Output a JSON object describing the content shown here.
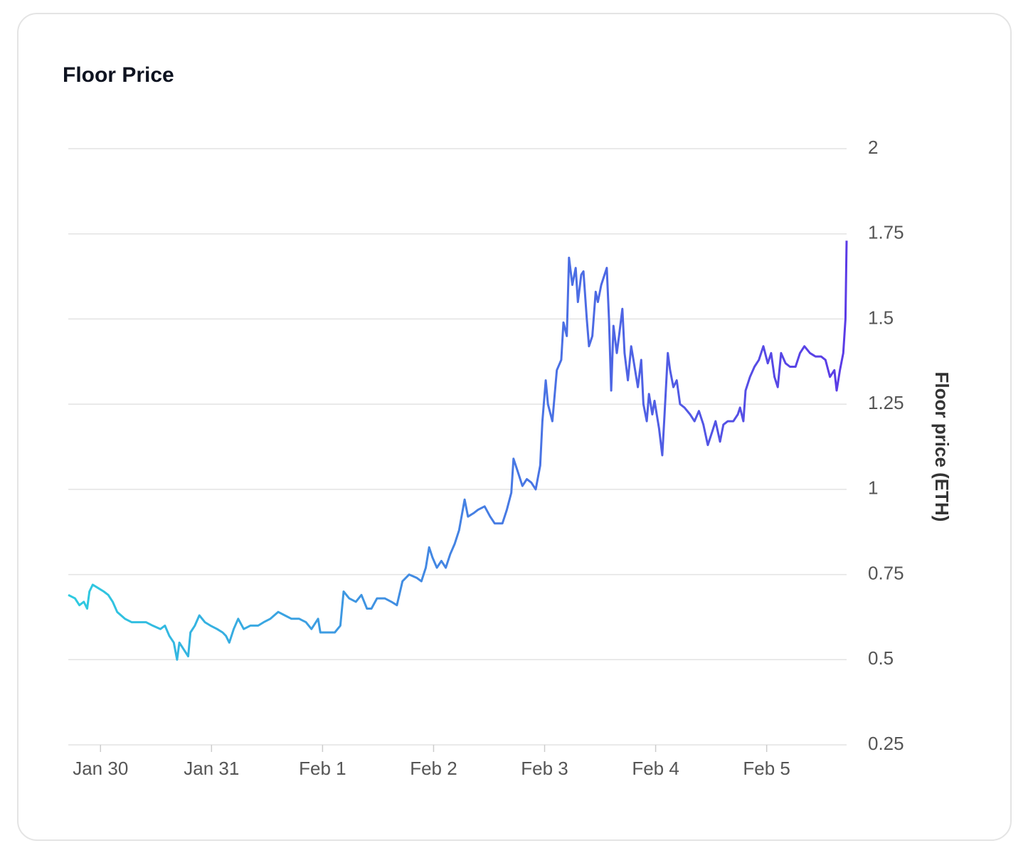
{
  "chart_data": {
    "type": "line",
    "title": "Floor Price",
    "ylabel": "Floor price (ETH)",
    "x": [
      -0.29,
      -0.23,
      -0.19,
      -0.15,
      -0.12,
      -0.1,
      -0.07,
      -0.02,
      0.03,
      0.07,
      0.11,
      0.15,
      0.22,
      0.28,
      0.35,
      0.41,
      0.47,
      0.54,
      0.58,
      0.62,
      0.66,
      0.69,
      0.71,
      0.75,
      0.79,
      0.81,
      0.85,
      0.89,
      0.94,
      0.99,
      1.05,
      1.1,
      1.13,
      1.16,
      1.2,
      1.24,
      1.29,
      1.35,
      1.42,
      1.47,
      1.53,
      1.6,
      1.66,
      1.72,
      1.79,
      1.85,
      1.9,
      1.96,
      1.98,
      2.04,
      2.11,
      2.16,
      2.19,
      2.24,
      2.3,
      2.35,
      2.4,
      2.44,
      2.49,
      2.56,
      2.62,
      2.67,
      2.72,
      2.78,
      2.85,
      2.89,
      2.93,
      2.96,
      2.99,
      3.03,
      3.07,
      3.11,
      3.15,
      3.19,
      3.23,
      3.28,
      3.31,
      3.36,
      3.4,
      3.46,
      3.51,
      3.55,
      3.62,
      3.66,
      3.7,
      3.72,
      3.76,
      3.8,
      3.84,
      3.88,
      3.92,
      3.96,
      3.98,
      4.01,
      4.03,
      4.07,
      4.11,
      4.15,
      4.17,
      4.2,
      4.22,
      4.25,
      4.28,
      4.3,
      4.33,
      4.35,
      4.38,
      4.4,
      4.43,
      4.46,
      4.48,
      4.51,
      4.53,
      4.56,
      4.58,
      4.6,
      4.62,
      4.65,
      4.67,
      4.7,
      4.72,
      4.75,
      4.78,
      4.8,
      4.84,
      4.87,
      4.89,
      4.92,
      4.94,
      4.97,
      4.99,
      5.03,
      5.06,
      5.08,
      5.11,
      5.13,
      5.16,
      5.19,
      5.22,
      5.26,
      5.31,
      5.35,
      5.39,
      5.43,
      5.47,
      5.51,
      5.54,
      5.58,
      5.61,
      5.65,
      5.7,
      5.74,
      5.76,
      5.79,
      5.81,
      5.85,
      5.89,
      5.93,
      5.97,
      6.01,
      6.04,
      6.07,
      6.1,
      6.13,
      6.17,
      6.21,
      6.26,
      6.3,
      6.34,
      6.39,
      6.44,
      6.49,
      6.53,
      6.57,
      6.61,
      6.63,
      6.66,
      6.69,
      6.71,
      6.72
    ],
    "values": [
      0.69,
      0.68,
      0.66,
      0.67,
      0.65,
      0.7,
      0.72,
      0.71,
      0.7,
      0.69,
      0.67,
      0.64,
      0.62,
      0.61,
      0.61,
      0.61,
      0.6,
      0.59,
      0.6,
      0.57,
      0.55,
      0.5,
      0.55,
      0.53,
      0.51,
      0.58,
      0.6,
      0.63,
      0.61,
      0.6,
      0.59,
      0.58,
      0.57,
      0.55,
      0.59,
      0.62,
      0.59,
      0.6,
      0.6,
      0.61,
      0.62,
      0.64,
      0.63,
      0.62,
      0.62,
      0.61,
      0.59,
      0.62,
      0.58,
      0.58,
      0.58,
      0.6,
      0.7,
      0.68,
      0.67,
      0.69,
      0.65,
      0.65,
      0.68,
      0.68,
      0.67,
      0.66,
      0.73,
      0.75,
      0.74,
      0.73,
      0.77,
      0.83,
      0.8,
      0.77,
      0.79,
      0.77,
      0.81,
      0.84,
      0.88,
      0.97,
      0.92,
      0.93,
      0.94,
      0.95,
      0.92,
      0.9,
      0.9,
      0.94,
      0.99,
      1.09,
      1.05,
      1.01,
      1.03,
      1.02,
      1.0,
      1.07,
      1.2,
      1.32,
      1.25,
      1.2,
      1.35,
      1.38,
      1.49,
      1.45,
      1.68,
      1.6,
      1.65,
      1.55,
      1.63,
      1.64,
      1.5,
      1.42,
      1.45,
      1.58,
      1.55,
      1.6,
      1.62,
      1.65,
      1.5,
      1.29,
      1.48,
      1.4,
      1.45,
      1.53,
      1.4,
      1.32,
      1.42,
      1.38,
      1.3,
      1.38,
      1.25,
      1.2,
      1.28,
      1.22,
      1.26,
      1.18,
      1.1,
      1.22,
      1.4,
      1.35,
      1.3,
      1.32,
      1.25,
      1.24,
      1.22,
      1.2,
      1.23,
      1.19,
      1.13,
      1.17,
      1.2,
      1.14,
      1.19,
      1.2,
      1.2,
      1.22,
      1.24,
      1.2,
      1.29,
      1.33,
      1.36,
      1.38,
      1.42,
      1.37,
      1.4,
      1.33,
      1.3,
      1.4,
      1.37,
      1.36,
      1.36,
      1.4,
      1.42,
      1.4,
      1.39,
      1.39,
      1.38,
      1.33,
      1.35,
      1.29,
      1.35,
      1.4,
      1.5,
      1.73
    ],
    "xlim": [
      -0.29,
      6.72
    ],
    "xticks": [
      {
        "value": 0,
        "label": "Jan 30"
      },
      {
        "value": 1,
        "label": "Jan 31"
      },
      {
        "value": 2,
        "label": "Feb 1"
      },
      {
        "value": 3,
        "label": "Feb 2"
      },
      {
        "value": 4,
        "label": "Feb 3"
      },
      {
        "value": 5,
        "label": "Feb 4"
      },
      {
        "value": 6,
        "label": "Feb 5"
      }
    ],
    "ylim": [
      0.25,
      2
    ],
    "yticks": [
      0.25,
      0.5,
      0.75,
      1,
      1.25,
      1.5,
      1.75,
      2
    ],
    "grid": true,
    "y_axis_side": "right",
    "gradient": [
      "#2ecbe0",
      "#5b3be6"
    ]
  }
}
